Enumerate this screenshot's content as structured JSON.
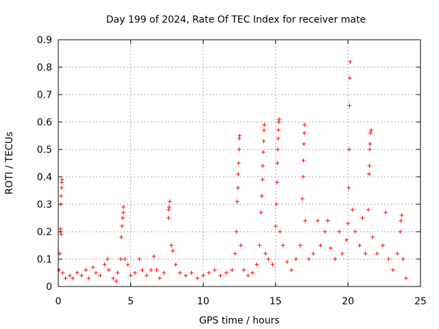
{
  "chart_data": {
    "type": "scatter",
    "title": "Day 199 of 2024, Rate Of TEC Index for receiver mate",
    "xlabel": "GPS time / hours",
    "ylabel": "ROTI / TECUs",
    "xlim": [
      0,
      25
    ],
    "ylim": [
      0,
      0.9
    ],
    "xticks": [
      0,
      5,
      10,
      15,
      20,
      25
    ],
    "xtick_labels": [
      "0",
      "5",
      "10",
      "15",
      "20",
      "25"
    ],
    "yticks": [
      0,
      0.1,
      0.2,
      0.3,
      0.4,
      0.5,
      0.6,
      0.7,
      0.8,
      0.9
    ],
    "ytick_labels": [
      "0",
      "0.1",
      "0.2",
      "0.3",
      "0.4",
      "0.5",
      "0.6",
      "0.7",
      "0.8",
      "0.9"
    ],
    "grid": true,
    "marker": "+",
    "color": "#ff0000",
    "series": [
      {
        "points": [
          [
            0.05,
            0.06
          ],
          [
            0.1,
            0.12
          ],
          [
            0.15,
            0.2
          ],
          [
            0.18,
            0.3
          ],
          [
            0.2,
            0.33
          ],
          [
            0.22,
            0.36
          ],
          [
            0.24,
            0.38
          ],
          [
            0.25,
            0.39
          ],
          [
            0.15,
            0.21
          ],
          [
            0.2,
            0.19
          ],
          [
            0.3,
            0.05
          ],
          [
            0.5,
            0.03
          ],
          [
            0.8,
            0.04
          ],
          [
            1.0,
            0.03
          ],
          [
            1.3,
            0.05
          ],
          [
            1.6,
            0.04
          ],
          [
            1.9,
            0.06
          ],
          [
            2.1,
            0.03
          ],
          [
            2.4,
            0.07
          ],
          [
            2.6,
            0.05
          ],
          [
            2.9,
            0.04
          ],
          [
            3.2,
            0.08
          ],
          [
            3.4,
            0.1
          ],
          [
            3.5,
            0.06
          ],
          [
            3.8,
            0.03
          ],
          [
            4.0,
            0.02
          ],
          [
            4.1,
            0.05
          ],
          [
            4.3,
            0.1
          ],
          [
            4.35,
            0.18
          ],
          [
            4.4,
            0.22
          ],
          [
            4.45,
            0.25
          ],
          [
            4.5,
            0.27
          ],
          [
            4.5,
            0.29
          ],
          [
            4.6,
            0.1
          ],
          [
            4.8,
            0.08
          ],
          [
            5.0,
            0.04
          ],
          [
            5.3,
            0.05
          ],
          [
            5.6,
            0.1
          ],
          [
            5.8,
            0.06
          ],
          [
            6.1,
            0.04
          ],
          [
            6.4,
            0.06
          ],
          [
            6.6,
            0.11
          ],
          [
            6.8,
            0.06
          ],
          [
            7.0,
            0.03
          ],
          [
            7.3,
            0.05
          ],
          [
            7.6,
            0.25
          ],
          [
            7.62,
            0.28
          ],
          [
            7.65,
            0.29
          ],
          [
            7.7,
            0.31
          ],
          [
            7.8,
            0.15
          ],
          [
            7.9,
            0.13
          ],
          [
            8.1,
            0.08
          ],
          [
            8.4,
            0.05
          ],
          [
            8.8,
            0.04
          ],
          [
            9.2,
            0.05
          ],
          [
            9.6,
            0.03
          ],
          [
            10.0,
            0.04
          ],
          [
            10.4,
            0.05
          ],
          [
            10.8,
            0.06
          ],
          [
            11.2,
            0.04
          ],
          [
            11.6,
            0.05
          ],
          [
            12.0,
            0.06
          ],
          [
            12.2,
            0.12
          ],
          [
            12.3,
            0.2
          ],
          [
            12.35,
            0.31
          ],
          [
            12.4,
            0.36
          ],
          [
            12.42,
            0.41
          ],
          [
            12.45,
            0.45
          ],
          [
            12.48,
            0.5
          ],
          [
            12.5,
            0.54
          ],
          [
            12.52,
            0.55
          ],
          [
            12.6,
            0.15
          ],
          [
            12.8,
            0.06
          ],
          [
            13.1,
            0.04
          ],
          [
            13.4,
            0.05
          ],
          [
            13.7,
            0.08
          ],
          [
            13.9,
            0.15
          ],
          [
            14.0,
            0.27
          ],
          [
            14.05,
            0.33
          ],
          [
            14.1,
            0.39
          ],
          [
            14.12,
            0.44
          ],
          [
            14.15,
            0.49
          ],
          [
            14.18,
            0.53
          ],
          [
            14.2,
            0.57
          ],
          [
            14.22,
            0.59
          ],
          [
            14.3,
            0.12
          ],
          [
            14.5,
            0.1
          ],
          [
            14.8,
            0.08
          ],
          [
            15.0,
            0.22
          ],
          [
            15.05,
            0.3
          ],
          [
            15.1,
            0.38
          ],
          [
            15.12,
            0.45
          ],
          [
            15.15,
            0.5
          ],
          [
            15.18,
            0.54
          ],
          [
            15.2,
            0.57
          ],
          [
            15.22,
            0.6
          ],
          [
            15.25,
            0.61
          ],
          [
            15.3,
            0.2
          ],
          [
            15.5,
            0.15
          ],
          [
            15.8,
            0.09
          ],
          [
            16.1,
            0.06
          ],
          [
            16.4,
            0.1
          ],
          [
            16.7,
            0.15
          ],
          [
            16.85,
            0.32
          ],
          [
            16.9,
            0.4
          ],
          [
            16.92,
            0.46
          ],
          [
            16.95,
            0.52
          ],
          [
            16.98,
            0.56
          ],
          [
            17.0,
            0.59
          ],
          [
            17.05,
            0.24
          ],
          [
            17.3,
            0.1
          ],
          [
            17.6,
            0.12
          ],
          [
            17.9,
            0.24
          ],
          [
            18.1,
            0.15
          ],
          [
            18.4,
            0.2
          ],
          [
            18.6,
            0.24
          ],
          [
            18.8,
            0.14
          ],
          [
            19.1,
            0.1
          ],
          [
            19.4,
            0.2
          ],
          [
            19.6,
            0.12
          ],
          [
            19.9,
            0.17
          ],
          [
            20.0,
            0.23
          ],
          [
            20.05,
            0.36
          ],
          [
            20.08,
            0.5
          ],
          [
            20.1,
            0.66
          ],
          [
            20.12,
            0.76
          ],
          [
            20.15,
            0.82
          ],
          [
            20.3,
            0.28
          ],
          [
            20.5,
            0.2
          ],
          [
            20.8,
            0.15
          ],
          [
            21.0,
            0.25
          ],
          [
            21.2,
            0.12
          ],
          [
            21.4,
            0.28
          ],
          [
            21.45,
            0.41
          ],
          [
            21.48,
            0.44
          ],
          [
            21.5,
            0.5
          ],
          [
            21.52,
            0.52
          ],
          [
            21.55,
            0.56
          ],
          [
            21.6,
            0.57
          ],
          [
            21.7,
            0.18
          ],
          [
            22.0,
            0.12
          ],
          [
            22.4,
            0.15
          ],
          [
            22.6,
            0.27
          ],
          [
            22.8,
            0.1
          ],
          [
            23.1,
            0.06
          ],
          [
            23.4,
            0.12
          ],
          [
            23.6,
            0.2
          ],
          [
            23.65,
            0.24
          ],
          [
            23.7,
            0.26
          ],
          [
            23.8,
            0.1
          ],
          [
            24.0,
            0.03
          ]
        ]
      }
    ]
  }
}
